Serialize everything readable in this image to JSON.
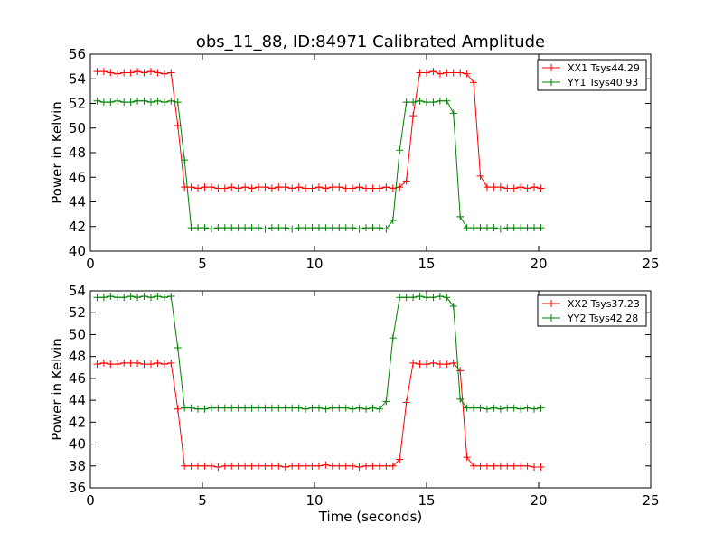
{
  "figure": {
    "title": "obs_11_88, ID:84971 Calibrated Amplitude"
  },
  "chart_data": [
    {
      "type": "line",
      "title": "obs_11_88, ID:84971 Calibrated Amplitude",
      "xlabel": "",
      "ylabel": "Power in Kelvin",
      "xlim": [
        0,
        25
      ],
      "ylim": [
        40,
        56
      ],
      "xticks": [
        0,
        5,
        10,
        15,
        20,
        25
      ],
      "yticks": [
        40,
        42,
        44,
        46,
        48,
        50,
        52,
        54,
        56
      ],
      "grid": false,
      "legend": "top-right",
      "x": [
        0.3,
        0.6,
        0.9,
        1.2,
        1.5,
        1.8,
        2.1,
        2.4,
        2.7,
        3.0,
        3.3,
        3.6,
        3.9,
        4.2,
        4.5,
        4.8,
        5.1,
        5.4,
        5.7,
        6.0,
        6.3,
        6.6,
        6.9,
        7.2,
        7.5,
        7.8,
        8.1,
        8.4,
        8.7,
        9.0,
        9.3,
        9.6,
        9.9,
        10.2,
        10.5,
        10.8,
        11.1,
        11.4,
        11.7,
        12.0,
        12.3,
        12.6,
        12.9,
        13.2,
        13.5,
        13.8,
        14.1,
        14.4,
        14.7,
        15.0,
        15.3,
        15.6,
        15.9,
        16.2,
        16.5,
        16.8,
        17.1,
        17.4,
        17.7,
        18.0,
        18.3,
        18.6,
        18.9,
        19.2,
        19.5,
        19.8,
        20.1
      ],
      "series": [
        {
          "name": "XX1 Tsys44.29",
          "color": "#ff0000",
          "values": [
            54.6,
            54.6,
            54.5,
            54.4,
            54.5,
            54.5,
            54.6,
            54.5,
            54.6,
            54.5,
            54.4,
            54.5,
            50.2,
            45.2,
            45.2,
            45.1,
            45.2,
            45.2,
            45.1,
            45.1,
            45.2,
            45.1,
            45.2,
            45.1,
            45.2,
            45.2,
            45.1,
            45.2,
            45.2,
            45.1,
            45.2,
            45.1,
            45.1,
            45.2,
            45.1,
            45.2,
            45.2,
            45.1,
            45.1,
            45.2,
            45.1,
            45.1,
            45.1,
            45.2,
            45.1,
            45.2,
            45.7,
            51.0,
            54.5,
            54.5,
            54.6,
            54.4,
            54.5,
            54.5,
            54.5,
            54.4,
            53.7,
            46.1,
            45.2,
            45.2,
            45.2,
            45.1,
            45.1,
            45.2,
            45.1,
            45.2,
            45.1
          ]
        },
        {
          "name": "YY1 Tsys40.93",
          "color": "#008000",
          "values": [
            52.2,
            52.1,
            52.1,
            52.2,
            52.1,
            52.1,
            52.2,
            52.2,
            52.1,
            52.2,
            52.1,
            52.2,
            52.1,
            47.4,
            41.9,
            41.9,
            41.9,
            41.8,
            41.9,
            41.9,
            41.9,
            41.9,
            41.9,
            41.9,
            41.9,
            41.8,
            41.9,
            41.9,
            41.9,
            41.8,
            41.9,
            41.9,
            41.9,
            41.9,
            41.9,
            41.9,
            41.9,
            41.9,
            41.9,
            41.8,
            41.9,
            41.9,
            41.9,
            41.8,
            42.5,
            48.2,
            52.1,
            52.1,
            52.2,
            52.1,
            52.1,
            52.2,
            52.2,
            51.2,
            42.8,
            41.9,
            41.9,
            41.9,
            41.9,
            41.9,
            41.8,
            41.9,
            41.9,
            41.9,
            41.9,
            41.9,
            41.9
          ]
        }
      ]
    },
    {
      "type": "line",
      "title": "",
      "xlabel": "Time (seconds)",
      "ylabel": "Power in Kelvin",
      "xlim": [
        0,
        25
      ],
      "ylim": [
        36,
        54
      ],
      "xticks": [
        0,
        5,
        10,
        15,
        20,
        25
      ],
      "yticks": [
        36,
        38,
        40,
        42,
        44,
        46,
        48,
        50,
        52,
        54
      ],
      "grid": false,
      "legend": "top-right",
      "x": [
        0.3,
        0.6,
        0.9,
        1.2,
        1.5,
        1.8,
        2.1,
        2.4,
        2.7,
        3.0,
        3.3,
        3.6,
        3.9,
        4.2,
        4.5,
        4.8,
        5.1,
        5.4,
        5.7,
        6.0,
        6.3,
        6.6,
        6.9,
        7.2,
        7.5,
        7.8,
        8.1,
        8.4,
        8.7,
        9.0,
        9.3,
        9.6,
        9.9,
        10.2,
        10.5,
        10.8,
        11.1,
        11.4,
        11.7,
        12.0,
        12.3,
        12.6,
        12.9,
        13.2,
        13.5,
        13.8,
        14.1,
        14.4,
        14.7,
        15.0,
        15.3,
        15.6,
        15.9,
        16.2,
        16.5,
        16.8,
        17.1,
        17.4,
        17.7,
        18.0,
        18.3,
        18.6,
        18.9,
        19.2,
        19.5,
        19.8,
        20.1
      ],
      "series": [
        {
          "name": "XX2 Tsys37.23",
          "color": "#ff0000",
          "values": [
            47.3,
            47.4,
            47.3,
            47.3,
            47.4,
            47.4,
            47.4,
            47.3,
            47.3,
            47.4,
            47.3,
            47.4,
            43.2,
            38.0,
            38.0,
            38.0,
            38.0,
            38.0,
            37.9,
            38.0,
            38.0,
            38.0,
            38.0,
            38.0,
            38.0,
            38.0,
            38.0,
            38.0,
            37.9,
            38.0,
            38.0,
            38.0,
            38.0,
            38.0,
            38.1,
            38.0,
            38.0,
            38.0,
            38.0,
            37.9,
            38.0,
            38.0,
            38.0,
            38.0,
            38.0,
            38.6,
            43.8,
            47.4,
            47.3,
            47.3,
            47.4,
            47.3,
            47.3,
            47.4,
            46.7,
            38.8,
            38.0,
            38.0,
            38.0,
            38.0,
            38.0,
            38.0,
            38.0,
            38.0,
            38.0,
            37.9,
            37.9
          ]
        },
        {
          "name": "YY2 Tsys42.28",
          "color": "#008000",
          "values": [
            53.4,
            53.4,
            53.5,
            53.4,
            53.4,
            53.5,
            53.4,
            53.5,
            53.4,
            53.5,
            53.4,
            53.5,
            48.8,
            43.3,
            43.3,
            43.2,
            43.2,
            43.3,
            43.3,
            43.3,
            43.3,
            43.3,
            43.3,
            43.3,
            43.3,
            43.3,
            43.3,
            43.3,
            43.3,
            43.3,
            43.3,
            43.2,
            43.3,
            43.3,
            43.2,
            43.3,
            43.3,
            43.3,
            43.2,
            43.3,
            43.2,
            43.3,
            43.2,
            43.9,
            49.7,
            53.4,
            53.4,
            53.4,
            53.5,
            53.4,
            53.4,
            53.5,
            53.4,
            52.6,
            44.1,
            43.3,
            43.3,
            43.3,
            43.2,
            43.3,
            43.2,
            43.3,
            43.3,
            43.2,
            43.3,
            43.2,
            43.3
          ]
        }
      ]
    }
  ]
}
